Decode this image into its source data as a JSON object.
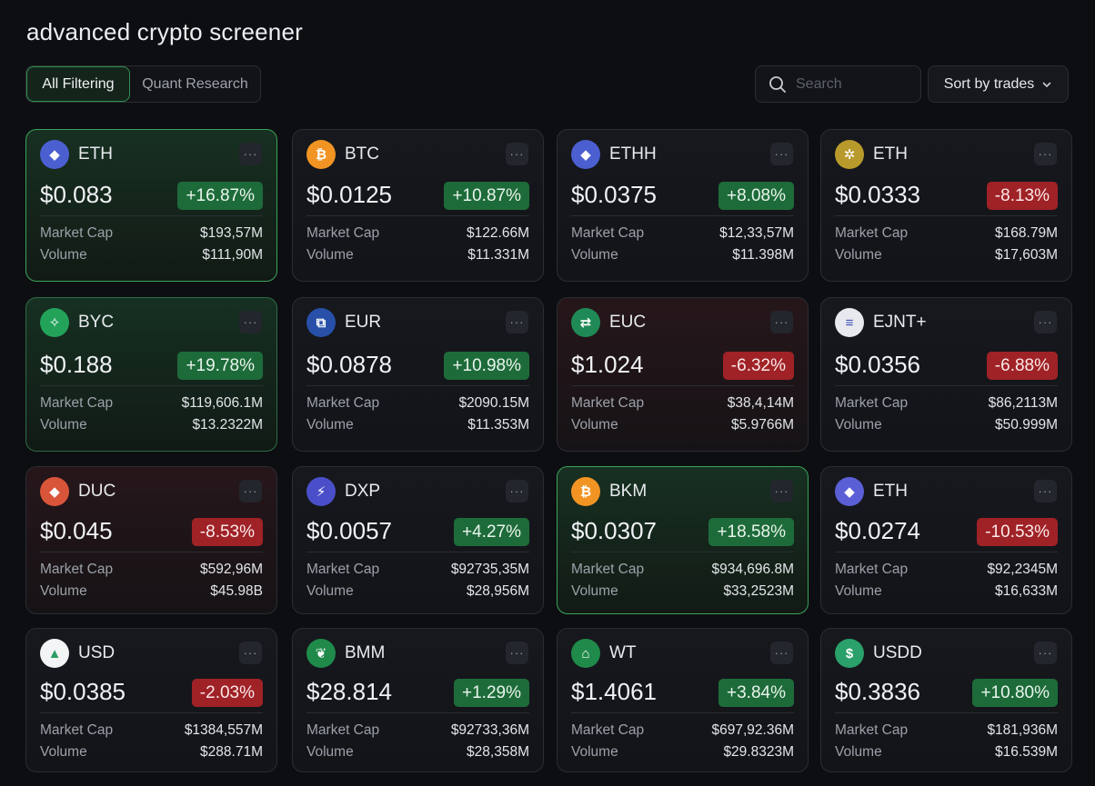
{
  "page": {
    "title": "advanced crypto screener"
  },
  "tabs": [
    {
      "label": "All Filtering",
      "active": true
    },
    {
      "label": "Quant Research",
      "active": false
    }
  ],
  "search": {
    "placeholder": "Search",
    "value": ""
  },
  "sort": {
    "label": "Sort by trades"
  },
  "labels": {
    "market_cap": "Market Cap",
    "volume": "Volume",
    "more": "···"
  },
  "colors": {
    "positive": "#1e6b3a",
    "negative": "#9f2227",
    "highlight_border": "#3aa35a"
  },
  "cards": [
    {
      "symbol": "ETH",
      "icon": "ethereum-icon",
      "price": "$0.083",
      "change": "+16.87%",
      "direction": "up",
      "market_cap": "$193,57M",
      "volume": "$111,90M",
      "highlight": "green"
    },
    {
      "symbol": "BTC",
      "icon": "bitcoin-icon",
      "price": "$0.0125",
      "change": "+10.87%",
      "direction": "up",
      "market_cap": "$122.66M",
      "volume": "$11.331M",
      "highlight": "none"
    },
    {
      "symbol": "ETHH",
      "icon": "ethereum-icon",
      "price": "$0.0375",
      "change": "+8.08%",
      "direction": "up",
      "market_cap": "$12,33,57M",
      "volume": "$11.398M",
      "highlight": "none"
    },
    {
      "symbol": "ETH",
      "icon": "gold-coin-icon",
      "price": "$0.0333",
      "change": "-8.13%",
      "direction": "down",
      "market_cap": "$168.79M",
      "volume": "$17,603M",
      "highlight": "none"
    },
    {
      "symbol": "BYC",
      "icon": "diamond-icon",
      "price": "$0.188",
      "change": "+19.78%",
      "direction": "up",
      "market_cap": "$119,606.1M",
      "volume": "$13.2322M",
      "highlight": "greentint"
    },
    {
      "symbol": "EUR",
      "icon": "network-icon",
      "price": "$0.0878",
      "change": "+10.98%",
      "direction": "up",
      "market_cap": "$2090.15M",
      "volume": "$11.353M",
      "highlight": "none"
    },
    {
      "symbol": "EUC",
      "icon": "exchange-icon",
      "price": "$1.024",
      "change": "-6.32%",
      "direction": "down",
      "market_cap": "$38,4,14M",
      "volume": "$5.9766M",
      "highlight": "redtint"
    },
    {
      "symbol": "EJNT+",
      "icon": "lines-icon",
      "price": "$0.0356",
      "change": "-6.88%",
      "direction": "down",
      "market_cap": "$86,2113M",
      "volume": "$50.999M",
      "highlight": "none"
    },
    {
      "symbol": "DUC",
      "icon": "diamond-icon",
      "price": "$0.045",
      "change": "-8.53%",
      "direction": "down",
      "market_cap": "$592,96M",
      "volume": "$45.98B",
      "highlight": "redtint"
    },
    {
      "symbol": "DXP",
      "icon": "bolt-icon",
      "price": "$0.0057",
      "change": "+4.27%",
      "direction": "up",
      "market_cap": "$92735,35M",
      "volume": "$28,956M",
      "highlight": "none"
    },
    {
      "symbol": "BKM",
      "icon": "bitcoin-icon",
      "price": "$0.0307",
      "change": "+18.58%",
      "direction": "up",
      "market_cap": "$934,696.8M",
      "volume": "$33,2523M",
      "highlight": "green"
    },
    {
      "symbol": "ETH",
      "icon": "ethereum-icon",
      "price": "$0.0274",
      "change": "-10.53%",
      "direction": "down",
      "market_cap": "$92,2345M",
      "volume": "$16,633M",
      "highlight": "none"
    },
    {
      "symbol": "USD",
      "icon": "drive-icon",
      "price": "$0.0385",
      "change": "-2.03%",
      "direction": "down",
      "market_cap": "$1384,557M",
      "volume": "$288.71M",
      "highlight": "none"
    },
    {
      "symbol": "BMM",
      "icon": "leaf-icon",
      "price": "$28.814",
      "change": "+1.29%",
      "direction": "up",
      "market_cap": "$92733,36M",
      "volume": "$28,358M",
      "highlight": "none"
    },
    {
      "symbol": "WT",
      "icon": "temple-icon",
      "price": "$1.4061",
      "change": "+3.84%",
      "direction": "up",
      "market_cap": "$697,92.36M",
      "volume": "$29.8323M",
      "highlight": "none"
    },
    {
      "symbol": "USDD",
      "icon": "dollar-icon",
      "price": "$0.3836",
      "change": "+10.80%",
      "direction": "up",
      "market_cap": "$181,936M",
      "volume": "$16.539M",
      "highlight": "none"
    }
  ]
}
